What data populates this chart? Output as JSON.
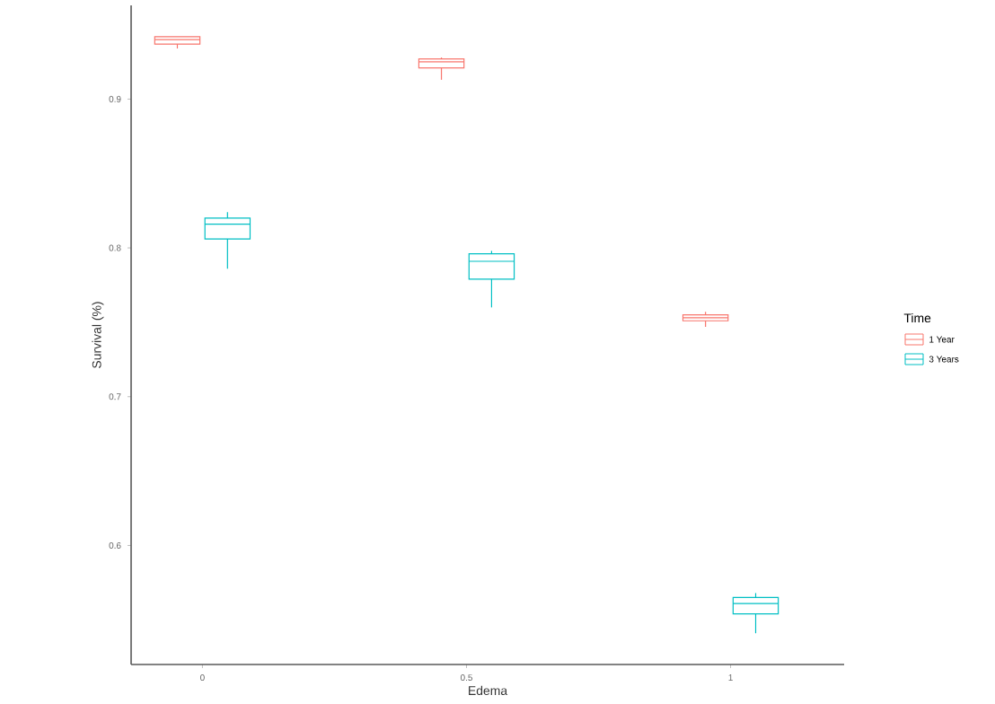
{
  "chart_data": {
    "type": "box",
    "xlabel": "Edema",
    "ylabel": "Survival (%)",
    "legend_title": "Time",
    "categories": [
      "0",
      "0.5",
      "1"
    ],
    "ylim": [
      0.52,
      0.963
    ],
    "yticks": [
      0.6,
      0.7,
      0.8,
      0.9
    ],
    "grid": false,
    "legend": "right",
    "series": [
      {
        "name": "1 Year",
        "color": "#f8766d",
        "boxes": [
          {
            "low": 0.934,
            "q1": 0.937,
            "median": 0.94,
            "q3": 0.942,
            "high": 0.942
          },
          {
            "low": 0.913,
            "q1": 0.921,
            "median": 0.925,
            "q3": 0.927,
            "high": 0.928
          },
          {
            "low": 0.747,
            "q1": 0.751,
            "median": 0.753,
            "q3": 0.755,
            "high": 0.757
          }
        ]
      },
      {
        "name": "3 Years",
        "color": "#00bfc4",
        "boxes": [
          {
            "low": 0.786,
            "q1": 0.806,
            "median": 0.816,
            "q3": 0.82,
            "high": 0.824
          },
          {
            "low": 0.76,
            "q1": 0.779,
            "median": 0.791,
            "q3": 0.796,
            "high": 0.798
          },
          {
            "low": 0.541,
            "q1": 0.554,
            "median": 0.561,
            "q3": 0.565,
            "high": 0.568
          }
        ]
      }
    ]
  }
}
